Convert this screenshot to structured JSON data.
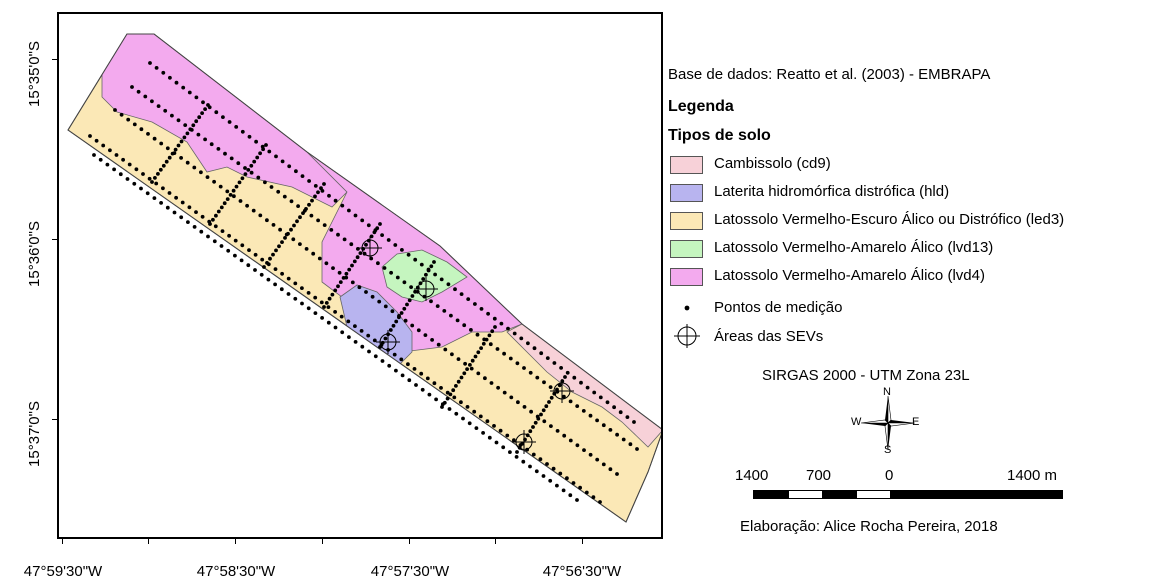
{
  "map": {
    "lat_labels": [
      "15°35'0\"S",
      "15°36'0\"S",
      "15°37'0\"S"
    ],
    "lon_labels": [
      "47°59'30\"W",
      "47°58'30\"W",
      "47°57'30\"W",
      "47°56'30\"W"
    ],
    "colors": {
      "cambissolo": "#f7d1d8",
      "laterita": "#b8b4ef",
      "latossolo_ve": "#fbe8b6",
      "lvd13": "#c5f5bf",
      "lvd4": "#f3aaee"
    }
  },
  "legend": {
    "source": "Base de dados: Reatto et al. (2003) - EMBRAPA",
    "title": "Legenda",
    "subtitle": "Tipos de solo",
    "soil_types": [
      {
        "label": "Cambissolo (cd9)",
        "color": "#f7d1d8"
      },
      {
        "label": "Laterita hidromórfica distrófica (hld)",
        "color": "#b8b4ef"
      },
      {
        "label": "Latossolo Vermelho-Escuro Álico ou Distrófico (led3)",
        "color": "#fbe8b6"
      },
      {
        "label": "Latossolo Vermelho-Amarelo Álico (lvd13)",
        "color": "#c5f5bf"
      },
      {
        "label": "Latossolo Vermelho-Amarelo Álico (lvd4)",
        "color": "#f3aaee"
      }
    ],
    "points_label": "Pontos de medição",
    "sev_label": "Áreas das SEVs",
    "crs": "SIRGAS 2000 - UTM Zona 23L",
    "north_arrow": {
      "n": "N",
      "s": "S",
      "e": "E",
      "w": "W",
      "icon": "compass-rose-icon"
    },
    "scale_labels": [
      "1400",
      "700",
      "0",
      "1400 m"
    ],
    "author": "Elaboração: Alice Rocha Pereira, 2018"
  }
}
